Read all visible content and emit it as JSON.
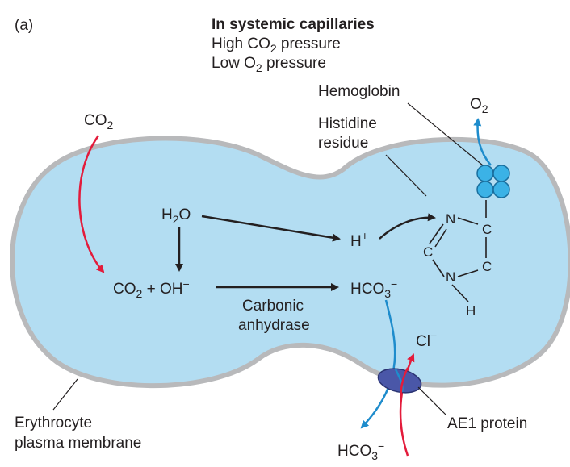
{
  "panel_label": "(a)",
  "header": {
    "title": "In systemic capillaries",
    "line1_pre": "High CO",
    "line1_sub": "2",
    "line1_post": " pressure",
    "line2_pre": "Low O",
    "line2_sub": "2",
    "line2_post": " pressure"
  },
  "labels": {
    "hemoglobin": "Hemoglobin",
    "histidine_1": "Histidine",
    "histidine_2": "residue",
    "enzyme_1": "Carbonic",
    "enzyme_2": "anhydrase",
    "membrane_1": "Erythrocyte",
    "membrane_2": "plasma membrane",
    "ae1": "AE1 protein"
  },
  "species": {
    "co2_in": {
      "base": "CO",
      "sub": "2"
    },
    "o2_out": {
      "base": "O",
      "sub": "2"
    },
    "h2o": {
      "base": "H",
      "sub": "2",
      "post": "O"
    },
    "co2_oh": {
      "base": "CO",
      "sub": "2",
      "mid": " + OH",
      "sup": "−"
    },
    "hplus": {
      "base": "H",
      "sup": "+"
    },
    "hco3_in": {
      "base": "HCO",
      "sub": "3",
      "sup": "−"
    },
    "hco3_out": {
      "base": "HCO",
      "sub": "3",
      "sup": "−"
    },
    "cl": {
      "base": "Cl",
      "sup": "−"
    }
  },
  "imidazole": {
    "n_top": "N",
    "c_top": "C",
    "c_left": "C",
    "c_right": "C",
    "n_bottom": "N",
    "h": "H"
  },
  "colors": {
    "cell_fill": "#b3ddf2",
    "membrane": "#b8b9bb",
    "co2_arrow": "#e31b3b",
    "o2_arrow": "#1e8ccc",
    "hemoglobin": "#3bb2e6",
    "ae1_protein": "#4a57a8"
  }
}
